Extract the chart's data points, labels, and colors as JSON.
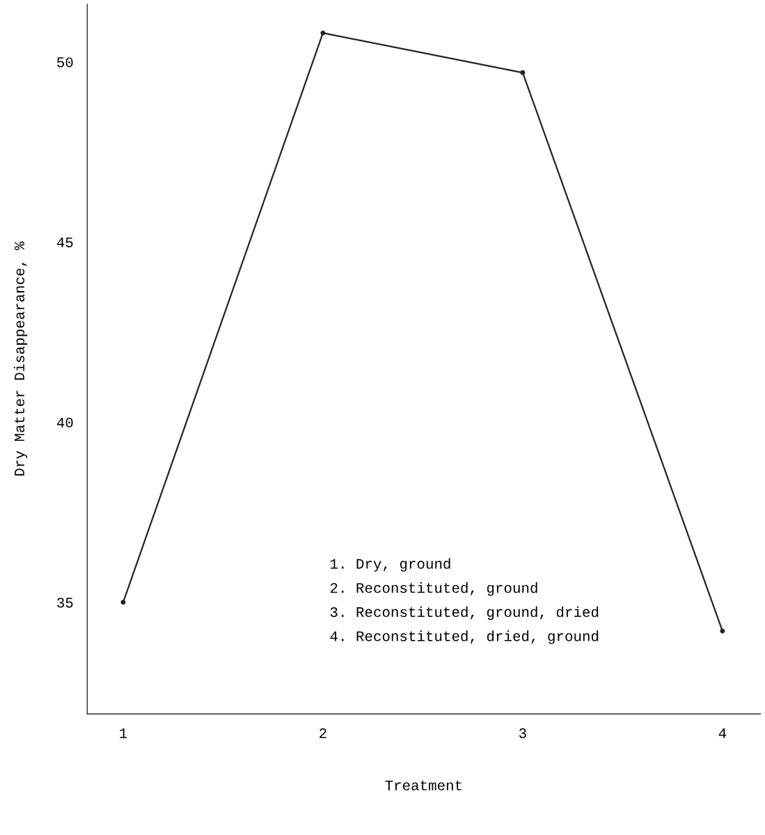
{
  "chart_data": {
    "type": "line",
    "xlabel": "Treatment",
    "ylabel": "Dry Matter Disappearance, %",
    "categories": [
      "1",
      "2",
      "3",
      "4"
    ],
    "series": [
      {
        "color": "#222222",
        "values": [
          35.0,
          50.8,
          49.7,
          34.2
        ]
      }
    ],
    "ylim": [
      31.9,
      51.6
    ],
    "yticks": [
      35,
      40,
      45,
      50
    ],
    "grid": false,
    "marker": "circle",
    "line_style": "solid",
    "annotations": [
      "1. Dry, ground",
      "2. Reconstituted, ground",
      "3. Reconstituted, ground, dried",
      "4. Reconstituted, dried, ground"
    ]
  }
}
